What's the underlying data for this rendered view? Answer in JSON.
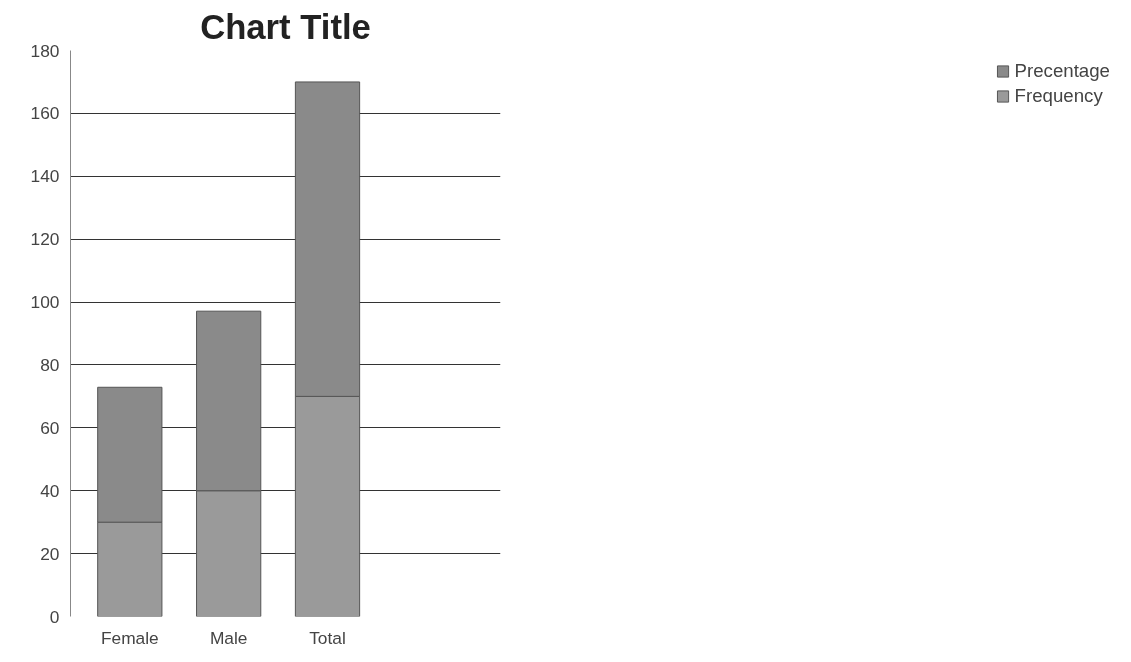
{
  "chart_data": {
    "type": "bar",
    "title": "Chart Title",
    "categories": [
      "Female",
      "Male",
      "Total"
    ],
    "stacked": true,
    "series": [
      {
        "name": "Frequency",
        "color": "#9a9a9a",
        "values": [
          30,
          40,
          70
        ]
      },
      {
        "name": "Precentage",
        "color": "#8a8a8a",
        "values": [
          42.9,
          57.1,
          100
        ]
      }
    ],
    "ylim": [
      0,
      180
    ],
    "yticks": [
      0,
      20,
      40,
      60,
      80,
      100,
      120,
      140,
      160,
      180
    ],
    "grid": "y",
    "legend": "right"
  }
}
